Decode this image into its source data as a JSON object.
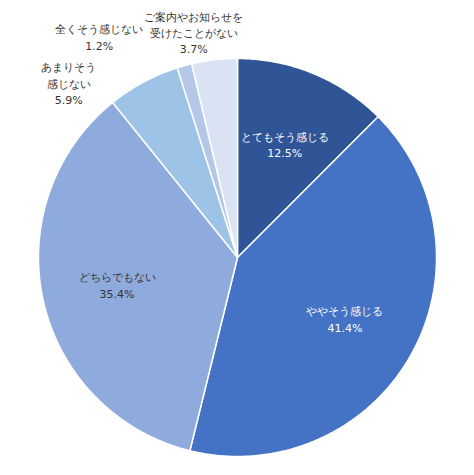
{
  "chart_data": {
    "type": "pie",
    "categories": [
      "とてもそう感じる",
      "ややそう感じる",
      "どちらでもない",
      "あまりそう\n感じない",
      "全くそう感じない",
      "ご案内やお知らせを\n受けたことがない"
    ],
    "values": [
      12.5,
      41.4,
      35.4,
      5.9,
      1.2,
      3.7
    ],
    "value_labels": [
      "12.5%",
      "41.4%",
      "35.4%",
      "5.9%",
      "1.2%",
      "3.7%"
    ],
    "colors": [
      "#2f5597",
      "#4472c4",
      "#8faadc",
      "#9dc3e6",
      "#b4c7e7",
      "#dae3f3"
    ],
    "data_labels": true
  }
}
